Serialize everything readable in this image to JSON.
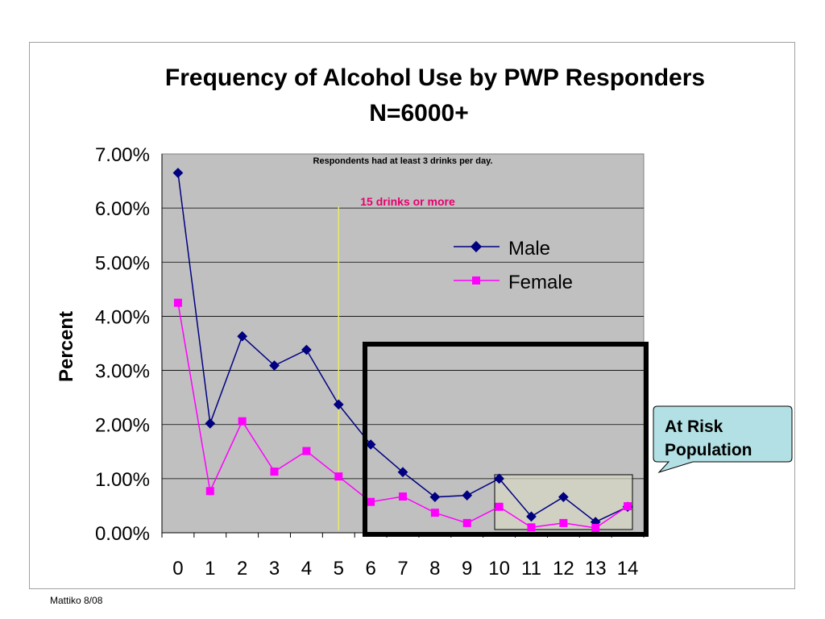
{
  "chart_data": {
    "type": "line",
    "title": "Frequency of Alcohol Use by PWP Responders",
    "subtitle": "N=6000+",
    "xlabel": "",
    "ylabel": "Percent",
    "x": [
      "0",
      "1",
      "2",
      "3",
      "4",
      "5",
      "6",
      "7",
      "8",
      "9",
      "10",
      "11",
      "12",
      "13",
      "14"
    ],
    "yticks": [
      "0.00%",
      "1.00%",
      "2.00%",
      "3.00%",
      "4.00%",
      "5.00%",
      "6.00%",
      "7.00%"
    ],
    "ylim": [
      0,
      7
    ],
    "grid": true,
    "legend_position": "upper-right",
    "series": [
      {
        "name": "Male",
        "color": "#000080",
        "marker": "diamond",
        "values": [
          6.65,
          2.02,
          3.63,
          3.09,
          3.38,
          2.37,
          1.63,
          1.12,
          0.66,
          0.69,
          1.0,
          0.3,
          0.66,
          0.2,
          0.48
        ]
      },
      {
        "name": "Female",
        "color": "#ff00ff",
        "marker": "square",
        "values": [
          4.25,
          0.77,
          2.06,
          1.13,
          1.51,
          1.04,
          0.57,
          0.67,
          0.37,
          0.18,
          0.48,
          0.1,
          0.18,
          0.09,
          0.49
        ]
      }
    ],
    "annotations": {
      "top_note": "Respondents had at least 3 drinks per day.",
      "threshold_label": "15 drinks or more",
      "threshold_x": 5,
      "threshold_color": "#e8e86a"
    },
    "colors": {
      "plot_bg": "#c0c0c0",
      "gridline": "#000000",
      "risk_box": "#000000"
    }
  },
  "callout": {
    "line1": "At Risk",
    "line2": "Population",
    "bg": "#b2e0e4"
  },
  "footer": "Mattiko 8/08"
}
